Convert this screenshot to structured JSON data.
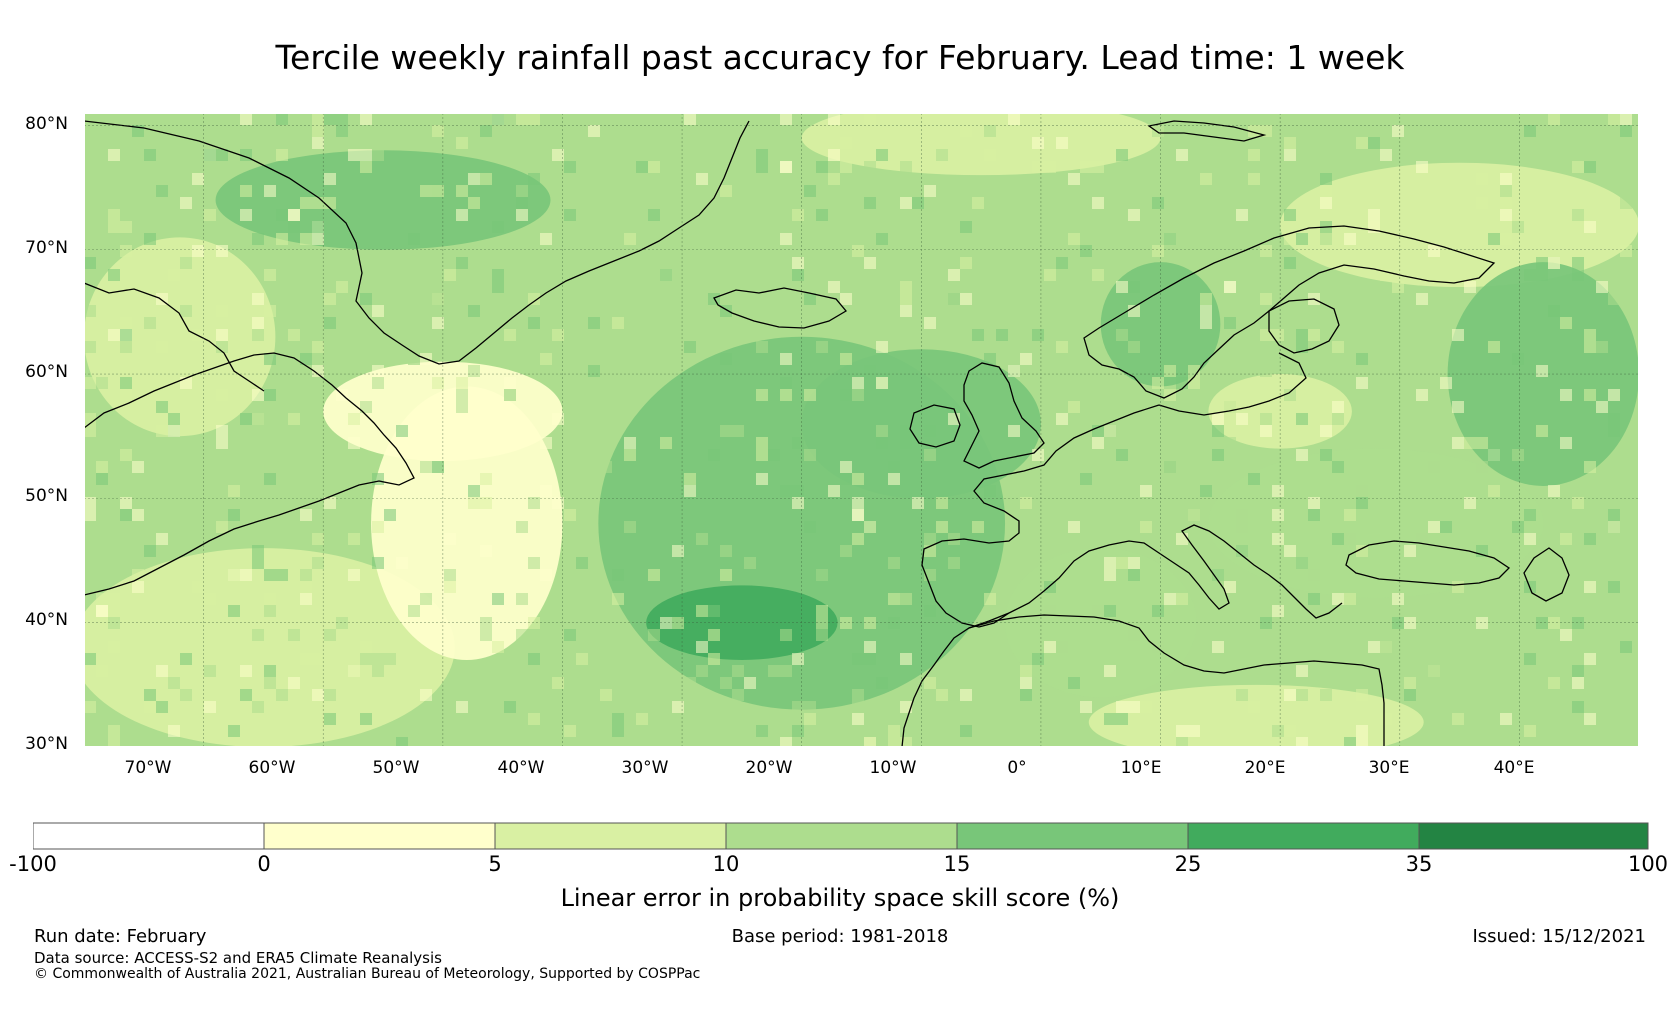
{
  "title": "Tercile weekly rainfall past accuracy for February. Lead time: 1 week",
  "map": {
    "region": "North Atlantic and Europe",
    "lon_range": [
      -80,
      50
    ],
    "lat_range": [
      30,
      81
    ],
    "lat_labels": [
      "80°N",
      "70°N",
      "60°N",
      "50°N",
      "40°N",
      "30°N"
    ],
    "lon_labels": [
      "70°W",
      "60°W",
      "50°W",
      "40°W",
      "30°W",
      "20°W",
      "10°W",
      "0°",
      "10°E",
      "20°E",
      "30°E",
      "40°E"
    ],
    "skill_patches": [
      {
        "lon": -65,
        "lat": 38,
        "r_lon": 16,
        "r_lat": 8,
        "category": 2
      },
      {
        "lon": -48,
        "lat": 48,
        "r_lon": 8,
        "r_lat": 11,
        "category": 1
      },
      {
        "lon": -50,
        "lat": 57,
        "r_lon": 10,
        "r_lat": 4,
        "category": 1
      },
      {
        "lon": -20,
        "lat": 48,
        "r_lon": 17,
        "r_lat": 15,
        "category": 4
      },
      {
        "lon": -25,
        "lat": 40,
        "r_lon": 8,
        "r_lat": 3,
        "category": 5
      },
      {
        "lon": -10,
        "lat": 56,
        "r_lon": 10,
        "r_lat": 6,
        "category": 4
      },
      {
        "lon": -55,
        "lat": 74,
        "r_lon": 14,
        "r_lat": 4,
        "category": 4
      },
      {
        "lon": -5,
        "lat": 79,
        "r_lon": 15,
        "r_lat": 3,
        "category": 2
      },
      {
        "lon": 10,
        "lat": 64,
        "r_lon": 5,
        "r_lat": 5,
        "category": 4
      },
      {
        "lon": 28,
        "lat": 48,
        "r_lon": 14,
        "r_lat": 6,
        "category": 3
      },
      {
        "lon": 20,
        "lat": 57,
        "r_lon": 6,
        "r_lat": 3,
        "category": 2
      },
      {
        "lon": 35,
        "lat": 72,
        "r_lon": 15,
        "r_lat": 5,
        "category": 2
      },
      {
        "lon": 5,
        "lat": 40,
        "r_lon": 8,
        "r_lat": 6,
        "category": 3
      },
      {
        "lon": 18,
        "lat": 32,
        "r_lon": 14,
        "r_lat": 3,
        "category": 2
      },
      {
        "lon": -72,
        "lat": 63,
        "r_lon": 8,
        "r_lat": 8,
        "category": 2
      },
      {
        "lon": 42,
        "lat": 60,
        "r_lon": 8,
        "r_lat": 9,
        "category": 4
      }
    ]
  },
  "colorbar": {
    "categories": [
      {
        "from": "-100",
        "to": "0",
        "color": "#ffffff"
      },
      {
        "from": "0",
        "to": "5",
        "color": "#ffffcc"
      },
      {
        "from": "5",
        "to": "10",
        "color": "#d9f0a3"
      },
      {
        "from": "10",
        "to": "15",
        "color": "#addd8e"
      },
      {
        "from": "15",
        "to": "25",
        "color": "#78c679"
      },
      {
        "from": "25",
        "to": "35",
        "color": "#41ab5d"
      },
      {
        "from": "35",
        "to": "100",
        "color": "#238443"
      }
    ],
    "ticks": [
      "-100",
      "0",
      "5",
      "10",
      "15",
      "25",
      "35",
      "100"
    ],
    "label": "Linear error in probability space skill score (%)"
  },
  "footer": {
    "run_date": "Run date: February",
    "base_period": "Base period: 1981-2018",
    "issued": "Issued: 15/12/2021",
    "data_source": "Data source: ACCESS-S2 and ERA5 Climate Reanalysis",
    "copyright": "© Commonwealth of Australia 2021, Australian Bureau of Meteorology, Supported by COSPPac"
  }
}
